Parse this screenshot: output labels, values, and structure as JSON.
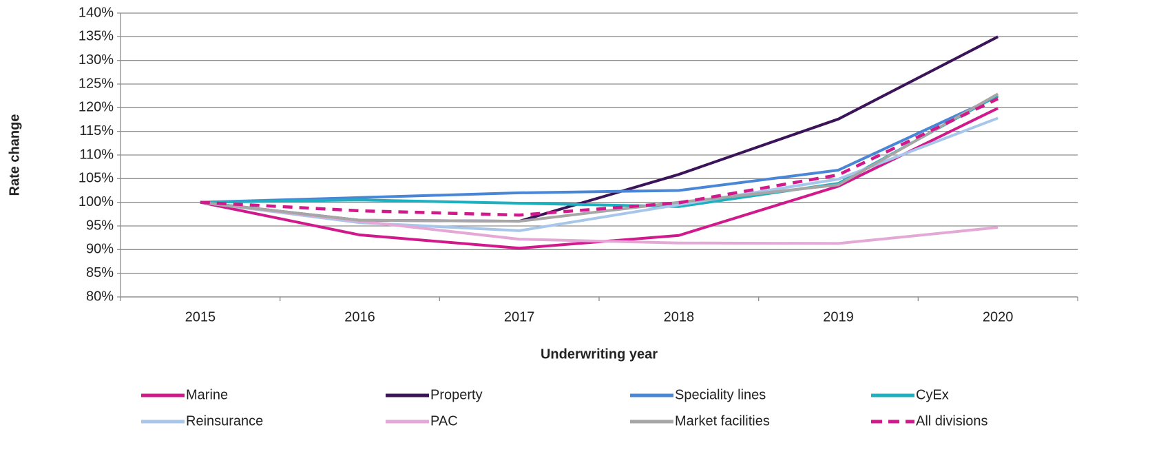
{
  "chart_data": {
    "type": "line",
    "x_label": "Underwriting year",
    "y_label": "Rate change",
    "categories": [
      "2015",
      "2016",
      "2017",
      "2018",
      "2019",
      "2020"
    ],
    "ylim": [
      80,
      140
    ],
    "yticks": [
      {
        "value": 80,
        "label": "80%"
      },
      {
        "value": 85,
        "label": "85%"
      },
      {
        "value": 90,
        "label": "90%"
      },
      {
        "value": 95,
        "label": "95%"
      },
      {
        "value": 100,
        "label": "100%"
      },
      {
        "value": 105,
        "label": "105%"
      },
      {
        "value": 110,
        "label": "110%"
      },
      {
        "value": 115,
        "label": "115%"
      },
      {
        "value": 120,
        "label": "120%"
      },
      {
        "value": 125,
        "label": "125%"
      },
      {
        "value": 130,
        "label": "130%"
      },
      {
        "value": 135,
        "label": "135%"
      },
      {
        "value": 140,
        "label": "140%"
      }
    ],
    "grid": true,
    "legend": "bottom",
    "series": [
      {
        "name": "Marine",
        "color": "#d0198b",
        "values": [
          100,
          93.1,
          90.3,
          93,
          103.4,
          119.9
        ]
      },
      {
        "name": "Property",
        "color": "#3a1358",
        "values": [
          100,
          96.2,
          96,
          105.9,
          117.6,
          135
        ]
      },
      {
        "name": "Speciality lines",
        "color": "#4a86d6",
        "values": [
          100,
          101,
          102,
          102.5,
          106.8,
          122.4
        ]
      },
      {
        "name": "CyEx",
        "color": "#1fb0c0",
        "values": [
          100,
          100.5,
          99.8,
          99.1,
          104,
          122.6
        ]
      },
      {
        "name": "Reinsurance",
        "color": "#a7c6ea",
        "values": [
          100,
          95.7,
          94,
          99.5,
          104.9,
          117.8
        ]
      },
      {
        "name": "PAC",
        "color": "#e3a8d6",
        "values": [
          100,
          96,
          92.2,
          91.4,
          91.3,
          94.7
        ]
      },
      {
        "name": "Market facilities",
        "color": "#a6a6a6",
        "values": [
          100,
          96.2,
          96,
          100,
          103.7,
          122.9
        ]
      },
      {
        "name": "All divisions",
        "color": "#d0198b",
        "style": "dashed",
        "values": [
          100,
          98.2,
          97.3,
          99.9,
          105.8,
          121.9
        ]
      }
    ]
  }
}
